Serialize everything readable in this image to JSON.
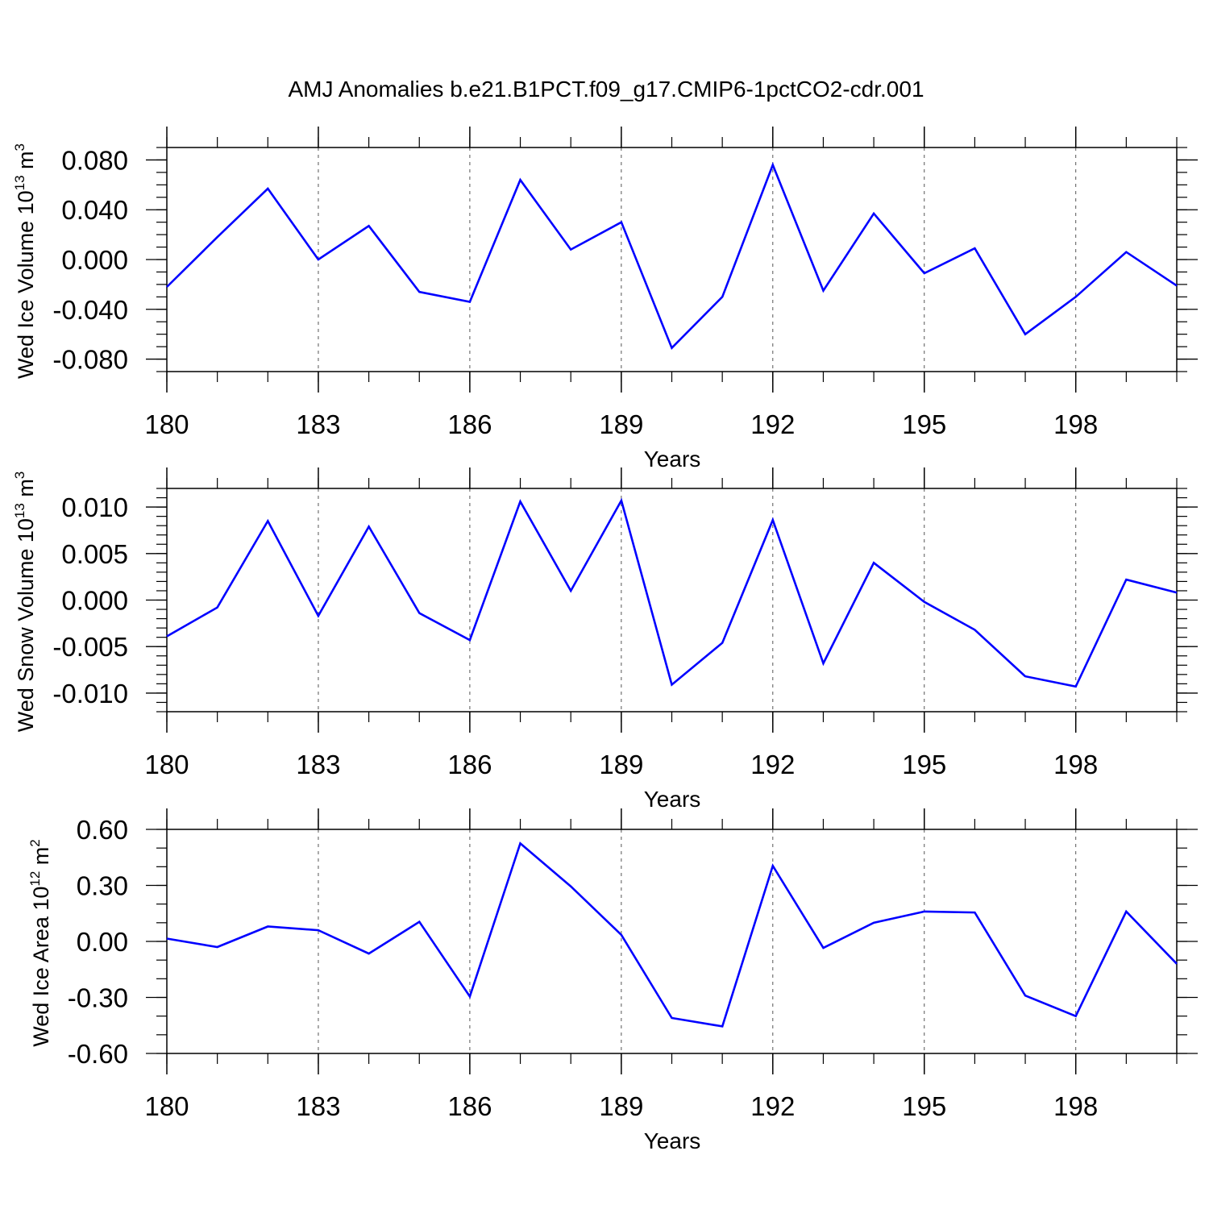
{
  "title": "AMJ Anomalies b.e21.B1PCT.f09_g17.CMIP6-1pctCO2-cdr.001",
  "colors": {
    "line": "#0000ff",
    "axis": "#000000",
    "grid": "#555555"
  },
  "chart_data": [
    {
      "type": "line",
      "ylabel": {
        "text": "Wed Ice Volume 10",
        "exponent": "13",
        "unit": " m",
        "unit_exponent": "3"
      },
      "xlabel": "Years",
      "xlim": [
        180,
        200
      ],
      "ylim": [
        -0.09,
        0.09
      ],
      "x_ticks": [
        "180",
        "183",
        "186",
        "189",
        "192",
        "195",
        "198"
      ],
      "y_ticks": [
        "0.080",
        "0.040",
        "0.000",
        "-0.040",
        "-0.080"
      ],
      "grid": "vertical dashed at major x ticks",
      "series": [
        {
          "x": [
            180,
            181,
            182,
            183,
            184,
            185,
            186,
            187,
            188,
            189,
            190,
            191,
            192,
            193,
            194,
            195,
            196,
            197,
            198,
            199,
            200
          ],
          "values": [
            -0.022,
            0.018,
            0.057,
            0.0,
            0.027,
            -0.026,
            -0.034,
            0.064,
            0.008,
            0.03,
            -0.071,
            -0.03,
            0.076,
            -0.025,
            0.037,
            -0.011,
            0.009,
            -0.06,
            -0.03,
            0.006,
            -0.021
          ]
        }
      ]
    },
    {
      "type": "line",
      "ylabel": {
        "text": "Wed Snow Volume 10",
        "exponent": "13",
        "unit": " m",
        "unit_exponent": "3"
      },
      "xlabel": "Years",
      "xlim": [
        180,
        200
      ],
      "ylim": [
        -0.012,
        0.012
      ],
      "x_ticks": [
        "180",
        "183",
        "186",
        "189",
        "192",
        "195",
        "198"
      ],
      "y_ticks": [
        "0.010",
        "0.005",
        "0.000",
        "-0.005",
        "-0.010"
      ],
      "grid": "vertical dashed at major x ticks",
      "series": [
        {
          "x": [
            180,
            181,
            182,
            183,
            184,
            185,
            186,
            187,
            188,
            189,
            190,
            191,
            192,
            193,
            194,
            195,
            196,
            197,
            198,
            199,
            200
          ],
          "values": [
            -0.0039,
            -0.0008,
            0.0085,
            -0.0017,
            0.0079,
            -0.0014,
            -0.0043,
            0.0106,
            0.001,
            0.0107,
            -0.0091,
            -0.0046,
            0.0086,
            -0.0068,
            0.004,
            -0.0002,
            -0.0032,
            -0.0082,
            -0.0093,
            0.0022,
            0.0008
          ]
        }
      ]
    },
    {
      "type": "line",
      "ylabel": {
        "text": "Wed Ice Area 10",
        "exponent": "12",
        "unit": " m",
        "unit_exponent": "2"
      },
      "xlabel": "Years",
      "xlim": [
        180,
        200
      ],
      "ylim": [
        -0.6,
        0.6
      ],
      "x_ticks": [
        "180",
        "183",
        "186",
        "189",
        "192",
        "195",
        "198"
      ],
      "y_ticks": [
        "0.60",
        "0.30",
        "0.00",
        "-0.30",
        "-0.60"
      ],
      "grid": "vertical dashed at major x ticks",
      "series": [
        {
          "x": [
            180,
            181,
            182,
            183,
            184,
            185,
            186,
            187,
            188,
            189,
            190,
            191,
            192,
            193,
            194,
            195,
            196,
            197,
            198,
            199,
            200
          ],
          "values": [
            0.015,
            -0.03,
            0.08,
            0.06,
            -0.065,
            0.105,
            -0.295,
            0.525,
            0.295,
            0.035,
            -0.41,
            -0.455,
            0.405,
            -0.035,
            0.1,
            0.16,
            0.155,
            -0.29,
            -0.4,
            0.16,
            -0.12
          ]
        }
      ]
    }
  ]
}
